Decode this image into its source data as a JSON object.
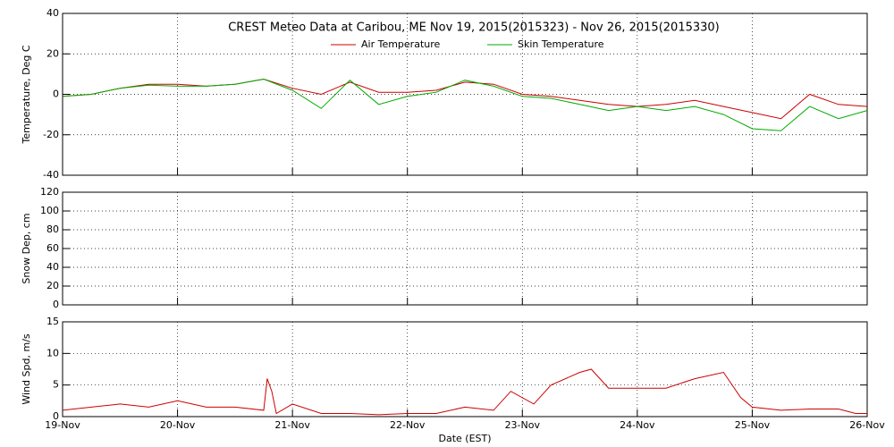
{
  "chart_data": [
    {
      "type": "line",
      "title": "CREST Meteo Data at Caribou, ME   Nov 19, 2015(2015323) - Nov 26, 2015(2015330)",
      "ylabel": "Temperature, Deg C",
      "legend": "top",
      "grid": true,
      "xlim": [
        0,
        7
      ],
      "xticks": [
        0,
        1,
        2,
        3,
        4,
        5,
        6,
        7
      ],
      "ylim": [
        -40,
        40
      ],
      "yticks": [
        -40,
        -20,
        0,
        20,
        40
      ],
      "x": [
        0,
        0.25,
        0.5,
        0.75,
        1,
        1.25,
        1.5,
        1.75,
        2,
        2.25,
        2.5,
        2.75,
        3,
        3.25,
        3.5,
        3.75,
        4,
        4.25,
        4.5,
        4.75,
        5,
        5.25,
        5.5,
        5.75,
        6,
        6.25,
        6.5,
        6.75,
        7
      ],
      "series": [
        {
          "name": "Air Temperature",
          "color": "#cc0000",
          "values": [
            -1,
            0,
            3,
            5,
            5,
            4,
            5,
            7.5,
            3,
            0,
            6,
            1,
            1,
            2,
            6,
            5,
            0,
            -1,
            -3,
            -5,
            -6,
            -5,
            -3,
            -6,
            -9,
            -12,
            0,
            -5,
            -6
          ]
        },
        {
          "name": "Skin Temperature",
          "color": "#00aa00",
          "values": [
            -1,
            0,
            3,
            4.5,
            4,
            4,
            5,
            7.5,
            2,
            -7,
            7,
            -5,
            -1,
            1,
            7,
            4,
            -1,
            -2,
            -5,
            -8,
            -6,
            -8,
            -6,
            -10,
            -17,
            -18,
            -6,
            -12,
            -8
          ]
        }
      ]
    },
    {
      "type": "line",
      "ylabel": "Snow Dep, cm",
      "grid": true,
      "xlim": [
        0,
        7
      ],
      "xticks": [
        0,
        1,
        2,
        3,
        4,
        5,
        6,
        7
      ],
      "ylim": [
        0,
        120
      ],
      "yticks": [
        0,
        20,
        40,
        60,
        80,
        100,
        120
      ],
      "x": [],
      "series": []
    },
    {
      "type": "line",
      "ylabel": "Wind Spd, m/s",
      "xlabel": "Date (EST)",
      "grid": true,
      "xlim": [
        0,
        7
      ],
      "xticks": [
        {
          "value": 0,
          "label": "19-Nov"
        },
        {
          "value": 1,
          "label": "20-Nov"
        },
        {
          "value": 2,
          "label": "21-Nov"
        },
        {
          "value": 3,
          "label": "22-Nov"
        },
        {
          "value": 4,
          "label": "23-Nov"
        },
        {
          "value": 5,
          "label": "24-Nov"
        },
        {
          "value": 6,
          "label": "25-Nov"
        },
        {
          "value": 7,
          "label": "26-Nov"
        }
      ],
      "ylim": [
        0,
        15
      ],
      "yticks": [
        0,
        5,
        10,
        15
      ],
      "x": [
        0,
        0.25,
        0.5,
        0.75,
        1,
        1.25,
        1.5,
        1.75,
        1.78,
        1.82,
        1.86,
        2,
        2.25,
        2.5,
        2.75,
        3,
        3.25,
        3.5,
        3.75,
        3.9,
        4.1,
        4.25,
        4.5,
        4.6,
        4.75,
        5,
        5.25,
        5.5,
        5.75,
        5.9,
        6,
        6.25,
        6.5,
        6.75,
        6.9,
        7
      ],
      "series": [
        {
          "color": "#cc0000",
          "values": [
            1,
            1.5,
            2,
            1.5,
            2.5,
            1.5,
            1.5,
            1,
            6,
            4,
            0.5,
            2,
            0.5,
            0.5,
            0.3,
            0.5,
            0.5,
            1.5,
            1,
            4,
            2,
            5,
            7,
            7.5,
            4.5,
            4.5,
            4.5,
            6,
            7,
            3,
            1.5,
            1,
            1.2,
            1.2,
            0.5,
            0.5
          ]
        }
      ]
    }
  ]
}
